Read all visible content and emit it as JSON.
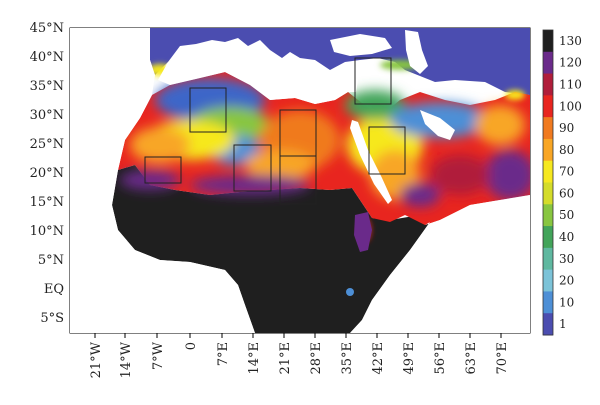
{
  "map": {
    "lat_labels": [
      "45°N",
      "40°N",
      "35°N",
      "30°N",
      "25°N",
      "20°N",
      "15°N",
      "10°N",
      "5°N",
      "EQ",
      "5°S"
    ],
    "lon_labels": [
      "21°W",
      "14°W",
      "7°W",
      "0",
      "7°E",
      "14°E",
      "21°E",
      "28°E",
      "35°E",
      "42°E",
      "49°E",
      "56°E",
      "63°E",
      "70°E"
    ],
    "colorbar": {
      "labels": [
        "1",
        "10",
        "20",
        "30",
        "40",
        "50",
        "60",
        "70",
        "80",
        "90",
        "100",
        "110",
        "120",
        "130"
      ],
      "colors": [
        "#4b4db0",
        "#4d8fd6",
        "#7cc3d8",
        "#5fb8a0",
        "#42a45a",
        "#88c640",
        "#d4dc2a",
        "#f6e81f",
        "#f8a625",
        "#f07a1f",
        "#e8251f",
        "#b01d3a",
        "#6a2a8a",
        "#1f1f1f"
      ]
    },
    "boxes": [
      "box-atlas",
      "box-sahara-west",
      "box-libya-south",
      "box-egypt",
      "box-levant",
      "box-arabia-west",
      "box-sahel-central"
    ]
  }
}
